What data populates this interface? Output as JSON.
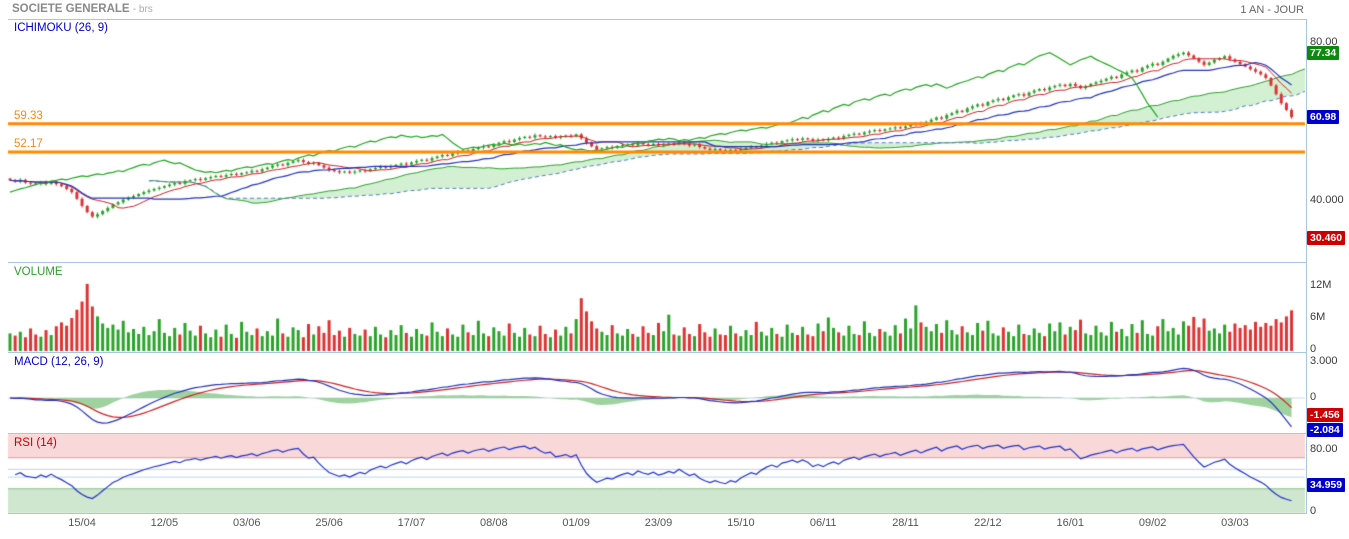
{
  "header": {
    "title": "SOCIETE GENERALE",
    "subtitle": "- brs",
    "timeframe": "1 AN - JOUR"
  },
  "panels": {
    "price": {
      "indicator_label": "ICHIMOKU (26, 9)",
      "axis_top": "80.00",
      "axis_bottom": "40.000",
      "badge_high": "77.34",
      "badge_last": "60.98",
      "badge_low": "30.460",
      "level_upper": "59.33",
      "level_lower": "52.17"
    },
    "volume": {
      "indicator_label": "VOLUME",
      "axis": [
        "12M",
        "6M",
        "0"
      ]
    },
    "macd": {
      "indicator_label": "MACD (12, 26, 9)",
      "axis_top": "3.000",
      "axis_zero": "0",
      "badge_signal": "-1.456",
      "badge_macd": "-2.084"
    },
    "rsi": {
      "indicator_label": "RSI (14)",
      "axis_top": "80.00",
      "axis_bottom": "0",
      "badge_last": "34.959"
    }
  },
  "x_axis": {
    "labels": [
      "15/04",
      "12/05",
      "03/06",
      "25/06",
      "17/07",
      "08/08",
      "01/09",
      "23/09",
      "15/10",
      "06/11",
      "28/11",
      "22/12",
      "16/01",
      "09/02",
      "03/03"
    ],
    "label_day_indices": [
      14,
      30,
      46,
      62,
      78,
      94,
      110,
      126,
      142,
      158,
      174,
      190,
      206,
      222,
      238
    ]
  },
  "colors": {
    "up": "#2ba32b",
    "down": "#dd3333",
    "tenkan": "#cc2222",
    "kijun": "#2233bb",
    "chikou": "#1fa51f",
    "cloud_fill": "#c8ecc8",
    "cloud_edge_a": "#2d9e2d",
    "cloud_edge_b": "#5577cc",
    "level_line": "#ff8800",
    "macd_line": "#2233bb",
    "signal_line": "#cc2222",
    "hist_fill": "#8fca8f",
    "rsi_line": "#2233cc",
    "rsi_overbought_fill": "#f8d8d8",
    "rsi_overbought_line": "#e09999",
    "rsi_oversold_fill": "#cfe6cf",
    "rsi_oversold_line": "#8cbf8c",
    "rsi_mid_line": "#bcd6ec",
    "badge_green": "#0d8a0d",
    "badge_blue": "#0000cc",
    "badge_red": "#cc0000",
    "divider": "#a9c7e2",
    "zero_line": "#c8d8e8"
  },
  "chart_data": [
    {
      "type": "candlestick",
      "title": "ICHIMOKU (26, 9)",
      "timeframe": "1 AN - JOUR",
      "ylim": [
        24,
        86
      ],
      "y_ticks": [
        80.0,
        40.0
      ],
      "levels": [
        59.33,
        52.17
      ],
      "badge_high": 77.34,
      "badge_last": 60.98,
      "badge_low": 30.46,
      "ichimoku_params": {
        "tenkan": 9,
        "kijun": 26,
        "senkou_b": 52,
        "displacement": 26
      },
      "close": [
        45.0,
        44.7,
        45.1,
        44.4,
        44.2,
        44.0,
        44.5,
        44.1,
        44.6,
        44.0,
        43.5,
        42.8,
        42.0,
        40.3,
        38.5,
        36.9,
        35.8,
        36.4,
        37.2,
        38.0,
        38.9,
        39.4,
        40.1,
        40.6,
        41.0,
        41.5,
        42.0,
        42.4,
        42.8,
        43.1,
        43.5,
        43.9,
        44.3,
        44.1,
        44.8,
        45.0,
        45.3,
        45.1,
        45.5,
        45.8,
        46.1,
        45.9,
        46.3,
        46.6,
        46.4,
        46.8,
        47.0,
        47.4,
        47.2,
        47.8,
        48.2,
        48.7,
        49.0,
        48.8,
        49.4,
        49.8,
        50.1,
        49.6,
        49.2,
        49.4,
        48.8,
        48.2,
        47.6,
        47.3,
        47.0,
        47.2,
        46.9,
        47.2,
        47.5,
        47.3,
        47.8,
        48.1,
        48.4,
        48.2,
        48.6,
        48.9,
        49.2,
        49.0,
        49.5,
        49.9,
        50.2,
        50.0,
        50.6,
        51.0,
        51.4,
        51.2,
        51.8,
        52.2,
        52.5,
        52.3,
        52.9,
        53.3,
        53.6,
        53.4,
        54.0,
        54.5,
        54.9,
        54.7,
        55.3,
        55.7,
        56.0,
        55.8,
        56.4,
        56.1,
        55.9,
        56.2,
        55.8,
        56.0,
        56.3,
        56.1,
        56.6,
        55.6,
        54.5,
        53.6,
        52.8,
        53.1,
        53.4,
        53.2,
        53.6,
        53.9,
        54.1,
        53.8,
        54.4,
        54.1,
        53.9,
        54.2,
        53.8,
        54.0,
        54.3,
        54.1,
        54.6,
        54.2,
        53.8,
        54.0,
        53.4,
        53.0,
        52.7,
        52.9,
        52.6,
        52.4,
        52.7,
        52.5,
        52.9,
        53.2,
        53.5,
        53.3,
        53.8,
        54.2,
        54.5,
        54.3,
        54.9,
        55.1,
        55.4,
        55.2,
        55.6,
        55.4,
        55.0,
        55.3,
        55.1,
        55.5,
        55.8,
        55.6,
        56.2,
        56.5,
        56.8,
        56.6,
        57.1,
        57.4,
        57.7,
        57.5,
        57.9,
        58.1,
        58.4,
        58.2,
        58.6,
        59.0,
        59.4,
        59.2,
        59.8,
        60.3,
        60.9,
        60.6,
        61.5,
        62.0,
        62.6,
        62.3,
        63.2,
        63.7,
        64.2,
        63.9,
        64.8,
        65.2,
        65.6,
        65.3,
        66.0,
        66.5,
        66.8,
        66.4,
        67.2,
        67.7,
        68.1,
        67.8,
        68.5,
        68.9,
        69.2,
        68.8,
        69.4,
        68.9,
        68.3,
        68.8,
        69.4,
        69.8,
        70.2,
        70.7,
        71.2,
        70.9,
        71.8,
        72.3,
        72.8,
        72.5,
        73.5,
        74.0,
        74.5,
        74.2,
        75.0,
        75.8,
        76.5,
        76.9,
        77.3,
        76.6,
        75.8,
        75.0,
        74.2,
        74.8,
        75.5,
        75.9,
        76.4,
        75.6,
        75.0,
        74.4,
        73.8,
        73.1,
        72.5,
        71.8,
        70.9,
        69.0,
        66.8,
        64.5,
        62.8,
        60.98
      ]
    },
    {
      "type": "bar",
      "name": "VOLUME",
      "ylim": [
        0,
        13
      ],
      "y_ticks_millions": [
        12,
        6,
        0
      ],
      "values_m": [
        3.2,
        2.8,
        3.5,
        2.5,
        4.1,
        3.0,
        2.6,
        3.8,
        2.9,
        4.5,
        5.2,
        4.6,
        6.0,
        7.5,
        9.0,
        12.2,
        8.1,
        6.3,
        5.0,
        4.2,
        4.8,
        3.9,
        5.5,
        3.4,
        4.0,
        3.1,
        4.4,
        2.9,
        3.6,
        5.8,
        3.3,
        2.7,
        4.2,
        3.0,
        5.1,
        3.7,
        2.8,
        4.6,
        3.2,
        2.5,
        3.9,
        2.6,
        4.8,
        3.1,
        2.4,
        5.3,
        3.5,
        2.9,
        4.1,
        2.7,
        3.6,
        2.8,
        5.9,
        3.2,
        2.6,
        4.3,
        3.8,
        2.5,
        4.9,
        3.0,
        4.5,
        3.3,
        5.6,
        2.9,
        3.7,
        2.6,
        4.2,
        3.1,
        2.8,
        3.9,
        2.7,
        4.4,
        3.0,
        2.5,
        3.8,
        2.9,
        4.7,
        3.3,
        2.6,
        4.0,
        3.1,
        2.8,
        5.2,
        3.5,
        2.7,
        4.1,
        3.0,
        2.6,
        4.8,
        3.4,
        2.9,
        5.5,
        3.2,
        2.7,
        4.3,
        3.6,
        2.8,
        5.0,
        3.3,
        2.6,
        4.2,
        3.0,
        2.7,
        4.6,
        3.1,
        2.5,
        3.9,
        2.8,
        4.4,
        3.2,
        5.8,
        9.6,
        7.2,
        5.4,
        4.1,
        3.5,
        2.9,
        4.7,
        3.2,
        2.8,
        4.0,
        3.1,
        2.6,
        4.5,
        3.3,
        2.9,
        5.1,
        3.6,
        6.6,
        3.0,
        2.8,
        4.3,
        3.1,
        2.7,
        4.9,
        3.4,
        2.6,
        4.1,
        3.0,
        2.9,
        4.6,
        3.2,
        2.7,
        3.8,
        2.9,
        5.3,
        3.5,
        2.8,
        4.2,
        3.1,
        2.6,
        4.8,
        3.3,
        2.9,
        4.4,
        3.0,
        2.7,
        5.0,
        3.6,
        6.1,
        4.2,
        3.4,
        2.8,
        4.6,
        3.1,
        2.9,
        5.4,
        3.3,
        2.7,
        4.0,
        3.5,
        2.8,
        4.7,
        3.2,
        5.9,
        4.1,
        8.3,
        5.2,
        4.4,
        3.6,
        4.9,
        3.3,
        5.6,
        3.8,
        3.0,
        4.5,
        3.4,
        2.9,
        5.1,
        3.7,
        5.5,
        3.2,
        2.8,
        4.3,
        3.5,
        2.7,
        4.8,
        3.1,
        2.9,
        4.1,
        3.3,
        2.7,
        5.0,
        3.6,
        5.2,
        3.0,
        4.4,
        3.8,
        5.7,
        3.2,
        2.9,
        4.6,
        3.4,
        2.8,
        5.3,
        3.5,
        4.0,
        2.7,
        4.9,
        3.3,
        5.6,
        3.1,
        2.8,
        4.5,
        5.8,
        3.6,
        4.2,
        3.0,
        5.4,
        4.6,
        6.2,
        4.3,
        5.9,
        3.7,
        4.1,
        3.2,
        4.8,
        3.5,
        5.0,
        4.2,
        4.7,
        3.9,
        5.3,
        4.4,
        5.1,
        4.6,
        5.8,
        5.2,
        6.3,
        7.4
      ]
    },
    {
      "type": "line",
      "name": "MACD (12, 26, 9)",
      "params": [
        12,
        26,
        9
      ],
      "ylim": [
        -2.9,
        3.6
      ],
      "y_ticks": [
        3.0,
        0
      ],
      "last_signal": -1.456,
      "last_macd": -2.084,
      "derived_from": "close series of panel 1 (EMA12 - EMA26, signal EMA9, histogram filled green)"
    },
    {
      "type": "line",
      "name": "RSI (14)",
      "period": 14,
      "ylim": [
        0,
        100
      ],
      "y_ticks": [
        80,
        0
      ],
      "overbought": 70,
      "oversold": 30,
      "last": 34.959,
      "derived_from": "close series of panel 1 (Wilder RSI 14)"
    }
  ]
}
